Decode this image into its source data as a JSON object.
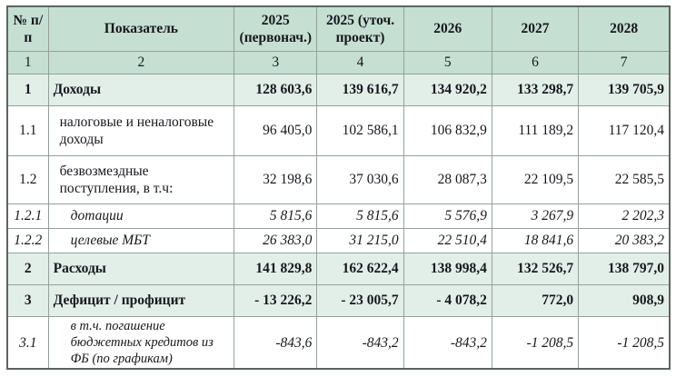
{
  "table": {
    "title": "budget-indicators-table",
    "header": {
      "cells": [
        "№ п/п",
        "Показатель",
        "2025 (первонач.)",
        "2025 (уточ. проект)",
        "2026",
        "2027",
        "2028"
      ],
      "index": [
        "1",
        "2",
        "3",
        "4",
        "5",
        "6",
        "7"
      ]
    },
    "rows": [
      {
        "num": "1",
        "label": "Доходы",
        "values": [
          "128 603,6",
          "139 616,7",
          "134 920,2",
          "133 298,7",
          "139 705,9"
        ]
      },
      {
        "num": "1.1",
        "label": "налоговые и неналоговые доходы",
        "values": [
          "96 405,0",
          "102 586,1",
          "106 832,9",
          "111 189,2",
          "117 120,4"
        ]
      },
      {
        "num": "1.2",
        "label": "безвозмездные поступления, в т.ч:",
        "values": [
          "32 198,6",
          "37 030,6",
          "28 087,3",
          "22 109,5",
          "22 585,5"
        ]
      },
      {
        "num": "1.2.1",
        "label": "дотации",
        "values": [
          "5 815,6",
          "5 815,6",
          "5 576,9",
          "3 267,9",
          "2 202,3"
        ]
      },
      {
        "num": "1.2.2",
        "label": "целевые МБТ",
        "values": [
          "26 383,0",
          "31 215,0",
          "22 510,4",
          "18 841,6",
          "20 383,2"
        ]
      },
      {
        "num": "2",
        "label": "Расходы",
        "values": [
          "141 829,8",
          "162 622,4",
          "138 998,4",
          "132 526,7",
          "138 797,0"
        ]
      },
      {
        "num": "3",
        "label": "Дефицит / профицит",
        "values": [
          "- 13 226,2",
          "- 23 005,7",
          "- 4 078,2",
          "772,0",
          "908,9"
        ]
      },
      {
        "num": "3.1",
        "label": "в т.ч. погашение бюджетных кредитов из ФБ (по графикам)",
        "values": [
          "-843,6",
          "-843,2",
          "-843,2",
          "-1 208,5",
          "-1 208,5"
        ]
      }
    ],
    "colors": {
      "header_bg": "#c5dfd3",
      "total_row_bg": "#e2efe9",
      "outer_border": "#5e6461",
      "inner_border": "#96a09b",
      "text": "#17171d"
    }
  }
}
